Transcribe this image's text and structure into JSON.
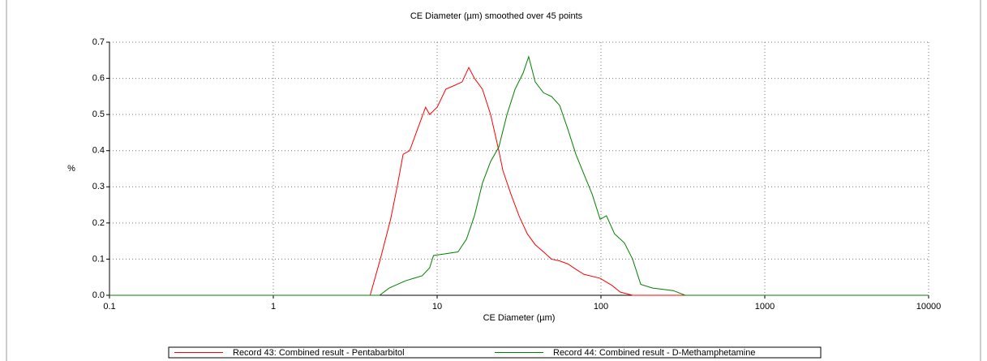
{
  "chart_data": {
    "type": "line",
    "title": "CE Diameter (µm) smoothed over 45 points",
    "xlabel": "CE Diameter (µm)",
    "ylabel": "%",
    "xscale": "log",
    "xlim": [
      0.1,
      10000
    ],
    "xticks": [
      0.1,
      1,
      10,
      100,
      1000,
      10000
    ],
    "ylim": [
      0,
      0.7
    ],
    "yticks": [
      {
        "value": 0,
        "label": "0.0"
      },
      0.1,
      0.2,
      0.3,
      0.4,
      0.5,
      0.6,
      0.7
    ],
    "grid": true,
    "legend": "bottom",
    "series": [
      {
        "name": "Record 43: Combined result - Pentabarbitol",
        "color": "#ff0000",
        "x": [
          0.1,
          3.9,
          4.5,
          5.2,
          5.7,
          6.2,
          6.8,
          7.6,
          8.5,
          9.0,
          10,
          11.3,
          12.7,
          14.2,
          15.6,
          16.9,
          18.9,
          21.2,
          23.8,
          25.2,
          28.2,
          31.6,
          35.5,
          39.7,
          44.6,
          49.9,
          56,
          62.7,
          70.3,
          78.7,
          98.9,
          117,
          131,
          156,
          10000
        ],
        "values": [
          0,
          0,
          0.1,
          0.21,
          0.3,
          0.39,
          0.4,
          0.46,
          0.52,
          0.5,
          0.52,
          0.57,
          0.58,
          0.59,
          0.63,
          0.6,
          0.57,
          0.5,
          0.4,
          0.345,
          0.28,
          0.22,
          0.17,
          0.14,
          0.12,
          0.1,
          0.095,
          0.087,
          0.072,
          0.058,
          0.047,
          0.027,
          0.009,
          0,
          0
        ]
      },
      {
        "name": "Record 44: Combined result - D-Methamphetamine",
        "color": "#008000",
        "x": [
          0.1,
          4.45,
          5.1,
          6.4,
          8.1,
          9.0,
          9.5,
          11.3,
          13.4,
          15.1,
          16.9,
          18.9,
          21.2,
          23.8,
          26.7,
          29.9,
          33.5,
          36.2,
          39.7,
          44.6,
          49.9,
          56,
          62.7,
          70.3,
          78.7,
          88.3,
          98.9,
          108,
          121,
          139,
          156,
          175,
          207,
          276,
          327,
          10000
        ],
        "values": [
          0,
          0,
          0.02,
          0.04,
          0.054,
          0.076,
          0.11,
          0.115,
          0.12,
          0.155,
          0.22,
          0.31,
          0.37,
          0.41,
          0.5,
          0.57,
          0.615,
          0.66,
          0.59,
          0.56,
          0.55,
          0.525,
          0.46,
          0.39,
          0.335,
          0.28,
          0.21,
          0.22,
          0.17,
          0.145,
          0.1,
          0.03,
          0.02,
          0.013,
          0,
          0
        ]
      }
    ]
  }
}
